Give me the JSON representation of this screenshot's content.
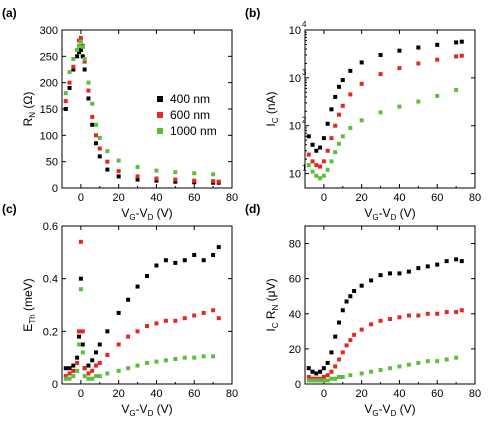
{
  "chart_data": [
    {
      "type": "scatter",
      "panel_label": "(a)",
      "xlabel": "V_G-V_D (V)",
      "ylabel": "R_N (Ω)",
      "xlim": [
        -10,
        80
      ],
      "ylim": [
        0,
        300
      ],
      "yscale": "linear",
      "xticks": [
        0,
        20,
        40,
        60,
        80
      ],
      "yticks": [
        0,
        50,
        100,
        150,
        200,
        250,
        300
      ],
      "legend": {
        "position": "right",
        "entries": [
          "400 nm",
          "600 nm",
          "1000 nm"
        ]
      },
      "series": [
        {
          "name": "400 nm",
          "color": "#000000",
          "x": [
            -8,
            -6,
            -4,
            -2,
            -1,
            0,
            1,
            2,
            4,
            6,
            8,
            10,
            14,
            20,
            30,
            40,
            50,
            60,
            70,
            73
          ],
          "y": [
            150,
            190,
            225,
            250,
            258,
            262,
            250,
            225,
            170,
            120,
            85,
            60,
            35,
            22,
            16,
            14,
            12,
            11,
            10,
            10
          ]
        },
        {
          "name": "600 nm",
          "color": "#e8261f",
          "x": [
            -8,
            -6,
            -4,
            -2,
            -1,
            0,
            1,
            2,
            4,
            6,
            8,
            10,
            14,
            20,
            30,
            40,
            50,
            60,
            70,
            73
          ],
          "y": [
            165,
            200,
            230,
            262,
            280,
            285,
            270,
            240,
            185,
            135,
            100,
            75,
            50,
            32,
            22,
            18,
            16,
            14,
            13,
            12
          ]
        },
        {
          "name": "1000 nm",
          "color": "#5cbf3c",
          "x": [
            -8,
            -6,
            -4,
            -2,
            -1,
            0,
            1,
            2,
            4,
            6,
            8,
            10,
            14,
            20,
            30,
            40,
            50,
            60,
            70
          ],
          "y": [
            180,
            220,
            245,
            262,
            270,
            278,
            268,
            245,
            200,
            160,
            120,
            95,
            70,
            52,
            40,
            33,
            30,
            28,
            26
          ]
        }
      ]
    },
    {
      "type": "scatter",
      "panel_label": "(b)",
      "xlabel": "V_G-V_D (V)",
      "ylabel": "I_C (nA)",
      "xlim": [
        -10,
        80
      ],
      "ylim": [
        5,
        10000
      ],
      "yscale": "log",
      "xticks": [
        0,
        20,
        40,
        60,
        80
      ],
      "yticks": [
        10,
        100,
        1000,
        10000
      ],
      "ytick_labels": [
        "10",
        "10",
        "10",
        "10"
      ],
      "ytick_exponents": [
        "1",
        "2",
        "3",
        "4"
      ],
      "series": [
        {
          "name": "400 nm",
          "color": "#000000",
          "x": [
            -8,
            -6,
            -4,
            -2,
            0,
            2,
            4,
            6,
            8,
            10,
            14,
            20,
            30,
            40,
            50,
            60,
            70,
            73
          ],
          "y": [
            60,
            40,
            30,
            35,
            55,
            110,
            220,
            400,
            650,
            900,
            1400,
            2100,
            3000,
            3700,
            4300,
            4900,
            5500,
            5700
          ]
        },
        {
          "name": "600 nm",
          "color": "#e8261f",
          "x": [
            -8,
            -6,
            -4,
            -2,
            0,
            2,
            4,
            6,
            8,
            10,
            14,
            20,
            30,
            40,
            50,
            60,
            70,
            73
          ],
          "y": [
            25,
            18,
            15,
            14,
            18,
            30,
            55,
            100,
            170,
            260,
            450,
            750,
            1200,
            1600,
            2000,
            2400,
            2800,
            2900
          ]
        },
        {
          "name": "1000 nm",
          "color": "#5cbf3c",
          "x": [
            -8,
            -6,
            -4,
            -2,
            0,
            2,
            4,
            6,
            8,
            10,
            14,
            20,
            30,
            40,
            50,
            60,
            70
          ],
          "y": [
            15,
            11,
            9,
            8,
            9,
            12,
            18,
            28,
            42,
            60,
            90,
            130,
            190,
            250,
            320,
            420,
            560
          ]
        }
      ]
    },
    {
      "type": "scatter",
      "panel_label": "(c)",
      "xlabel": "V_G-V_D (V)",
      "ylabel": "E_Th (meV)",
      "xlim": [
        -10,
        80
      ],
      "ylim": [
        0,
        0.6
      ],
      "yscale": "linear",
      "xticks": [
        0,
        20,
        40,
        60,
        80
      ],
      "yticks": [
        0,
        0.2,
        0.4,
        0.6
      ],
      "ytick_labels": [
        "0",
        "0.2",
        "0.4",
        "0.6"
      ],
      "series": [
        {
          "name": "400 nm",
          "color": "#000000",
          "x": [
            -8,
            -6,
            -4,
            -2,
            -1,
            0,
            1,
            2,
            4,
            6,
            8,
            10,
            14,
            20,
            25,
            30,
            35,
            40,
            45,
            50,
            55,
            60,
            65,
            70,
            73
          ],
          "y": [
            0.06,
            0.06,
            0.07,
            0.1,
            0.18,
            0.4,
            0.15,
            0.06,
            0.07,
            0.09,
            0.12,
            0.15,
            0.2,
            0.27,
            0.32,
            0.37,
            0.41,
            0.45,
            0.47,
            0.46,
            0.47,
            0.49,
            0.47,
            0.49,
            0.52
          ]
        },
        {
          "name": "600 nm",
          "color": "#e8261f",
          "x": [
            -8,
            -6,
            -4,
            -2,
            -1,
            0,
            1,
            2,
            4,
            6,
            8,
            10,
            14,
            20,
            25,
            30,
            35,
            40,
            45,
            50,
            55,
            60,
            65,
            70,
            73
          ],
          "y": [
            0.03,
            0.04,
            0.05,
            0.08,
            0.2,
            0.54,
            0.2,
            0.06,
            0.04,
            0.05,
            0.07,
            0.08,
            0.11,
            0.15,
            0.18,
            0.2,
            0.22,
            0.23,
            0.24,
            0.24,
            0.25,
            0.26,
            0.27,
            0.28,
            0.25
          ]
        },
        {
          "name": "1000 nm",
          "color": "#5cbf3c",
          "x": [
            -8,
            -6,
            -4,
            -2,
            -1,
            0,
            1,
            2,
            4,
            6,
            8,
            10,
            14,
            20,
            25,
            30,
            35,
            40,
            45,
            50,
            55,
            60,
            65,
            70
          ],
          "y": [
            0.02,
            0.02,
            0.03,
            0.05,
            0.15,
            0.36,
            0.12,
            0.03,
            0.02,
            0.02,
            0.03,
            0.03,
            0.04,
            0.05,
            0.06,
            0.07,
            0.08,
            0.085,
            0.09,
            0.095,
            0.1,
            0.1,
            0.105,
            0.105
          ]
        }
      ]
    },
    {
      "type": "scatter",
      "panel_label": "(d)",
      "xlabel": "V_G-V_D (V)",
      "ylabel": "I_C R_N (μV)",
      "xlim": [
        -10,
        80
      ],
      "ylim": [
        0,
        90
      ],
      "yscale": "linear",
      "xticks": [
        0,
        20,
        40,
        60,
        80
      ],
      "yticks": [
        0,
        20,
        40,
        60,
        80
      ],
      "series": [
        {
          "name": "400 nm",
          "color": "#000000",
          "x": [
            -8,
            -6,
            -4,
            -2,
            0,
            2,
            4,
            6,
            8,
            10,
            12,
            14,
            16,
            20,
            25,
            30,
            35,
            40,
            45,
            50,
            55,
            60,
            65,
            70,
            73
          ],
          "y": [
            9,
            7,
            6,
            7,
            9,
            12,
            18,
            27,
            35,
            42,
            47,
            50,
            53,
            56,
            59,
            62,
            63,
            63,
            64,
            66,
            67,
            68,
            70,
            71,
            70
          ]
        },
        {
          "name": "600 nm",
          "color": "#e8261f",
          "x": [
            -8,
            -6,
            -4,
            -2,
            0,
            2,
            4,
            6,
            8,
            10,
            12,
            14,
            16,
            20,
            25,
            30,
            35,
            40,
            45,
            50,
            55,
            60,
            65,
            70,
            73
          ],
          "y": [
            4,
            3,
            3,
            3,
            4,
            5,
            7,
            10,
            14,
            18,
            22,
            25,
            28,
            31,
            34,
            36,
            37,
            38,
            39,
            39,
            40,
            40,
            41,
            41,
            42
          ]
        },
        {
          "name": "1000 nm",
          "color": "#5cbf3c",
          "x": [
            -8,
            -6,
            -4,
            -2,
            0,
            2,
            4,
            6,
            8,
            10,
            14,
            20,
            25,
            30,
            35,
            40,
            45,
            50,
            55,
            60,
            65,
            70
          ],
          "y": [
            2,
            2,
            2,
            2,
            2,
            2,
            3,
            3,
            4,
            4,
            5,
            6,
            7,
            8,
            9,
            10,
            11,
            12,
            13,
            13,
            14,
            15
          ]
        }
      ]
    }
  ]
}
